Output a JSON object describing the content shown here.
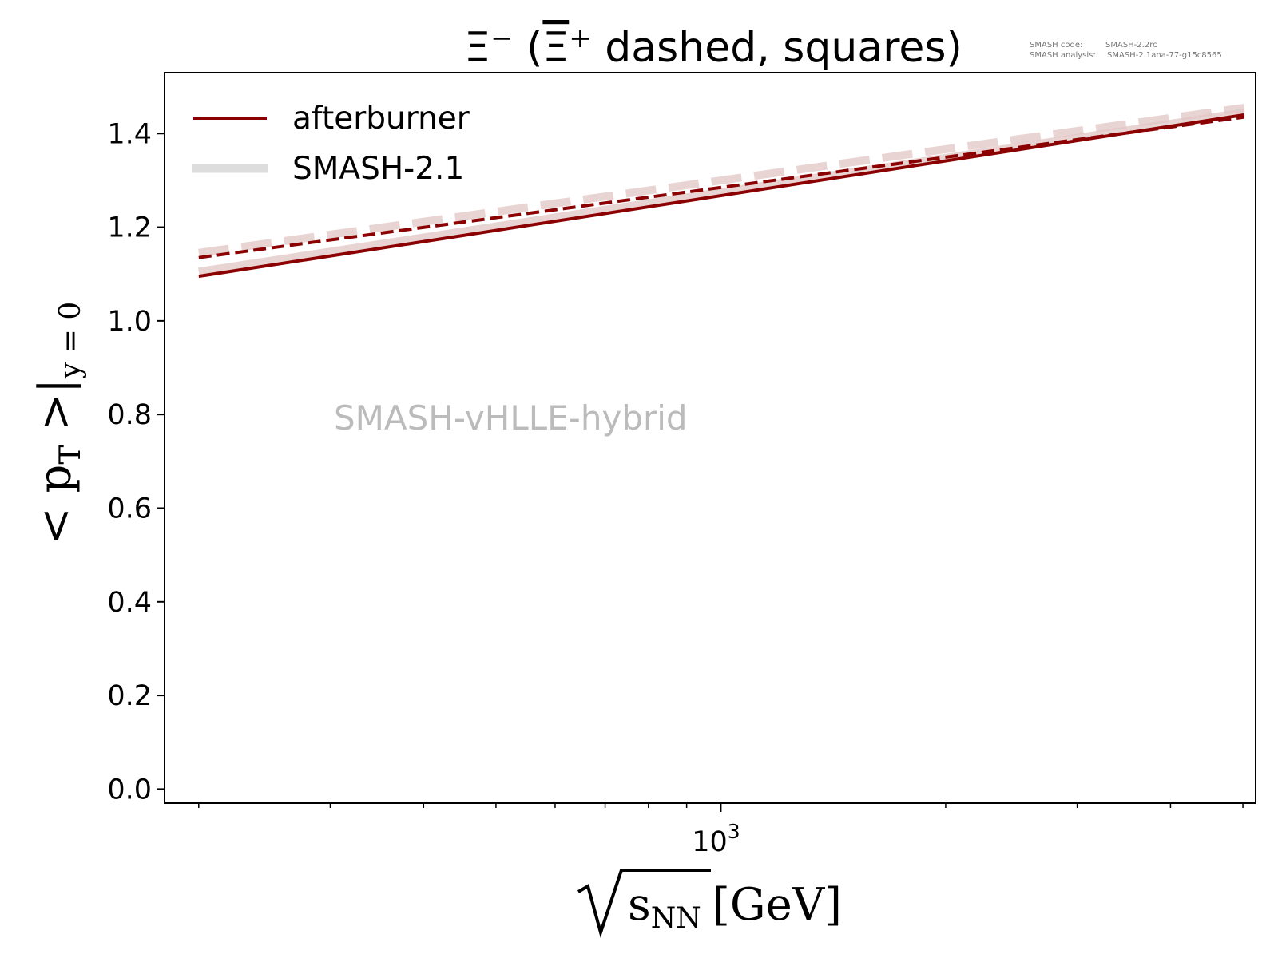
{
  "chart_data": {
    "type": "line",
    "title": "Ξ⁻ (Ξ̄⁺ dashed, squares)",
    "xlabel": "√sNN [GeV]",
    "ylabel": "<pT>|y=0",
    "xscale": "log",
    "xlim": [
      180,
      5200
    ],
    "ylim": [
      -0.03,
      1.53
    ],
    "x_ticks": [
      {
        "value": 1000,
        "base": "10",
        "exp": "3"
      }
    ],
    "x_minor_ticks": [
      200,
      300,
      400,
      500,
      600,
      700,
      800,
      900,
      2000,
      3000,
      4000,
      5000
    ],
    "y_ticks": [
      {
        "value": 0.0,
        "label": "0.0"
      },
      {
        "value": 0.2,
        "label": "0.2"
      },
      {
        "value": 0.4,
        "label": "0.4"
      },
      {
        "value": 0.6,
        "label": "0.6"
      },
      {
        "value": 0.8,
        "label": "0.8"
      },
      {
        "value": 1.0,
        "label": "1.0"
      },
      {
        "value": 1.2,
        "label": "1.2"
      },
      {
        "value": 1.4,
        "label": "1.4"
      }
    ],
    "legend": {
      "position": "top-left",
      "entries": [
        {
          "label": "afterburner",
          "color": "#8b0000",
          "style": "solid"
        },
        {
          "label": "SMASH-2.1",
          "color": "#dddddd",
          "style": "solid-thick"
        }
      ]
    },
    "series": [
      {
        "name": "afterburner",
        "particle": "Ξ⁻",
        "color": "#8b0000",
        "dash": "solid",
        "width": 4,
        "opacity": 1,
        "x": [
          200,
          5020
        ],
        "y": [
          1.095,
          1.44
        ]
      },
      {
        "name": "afterburner",
        "particle": "Ξ̄⁺",
        "color": "#8b0000",
        "dash": "dashed",
        "width": 4,
        "opacity": 1,
        "x": [
          200,
          5020
        ],
        "y": [
          1.135,
          1.435
        ]
      },
      {
        "name": "SMASH-2.1",
        "particle": "Ξ⁻",
        "color": "#e2c6c6",
        "dash": "solid",
        "width": 10,
        "opacity": 0.75,
        "x": [
          200,
          5020
        ],
        "y": [
          1.105,
          1.445
        ]
      },
      {
        "name": "SMASH-2.1",
        "particle": "Ξ̄⁺",
        "color": "#e2c6c6",
        "dash": "dashed",
        "width": 10,
        "opacity": 0.75,
        "x": [
          200,
          5020
        ],
        "y": [
          1.145,
          1.455
        ]
      }
    ],
    "annotations": [
      {
        "text": "SMASH-vHLLE-hybrid",
        "color": "#bbbbbb"
      }
    ],
    "version_info": [
      {
        "key": "SMASH code:",
        "value": "SMASH-2.2rc"
      },
      {
        "key": "SMASH analysis:",
        "value": "SMASH-2.1ana-77-g15c8565"
      }
    ]
  },
  "labels": {
    "title_main": "Ξ",
    "title_main_sup": "−",
    "title_open": " (",
    "title_anti": "Ξ",
    "title_anti_sup": "+",
    "title_rest": " dashed, squares)",
    "ylabel_open": "< p",
    "ylabel_sub_t": "T",
    "ylabel_close": " >|",
    "ylabel_sub_y": "y = 0",
    "xlabel_s": "s",
    "xlabel_sub": "NN",
    "xlabel_unit": "[GeV]"
  }
}
